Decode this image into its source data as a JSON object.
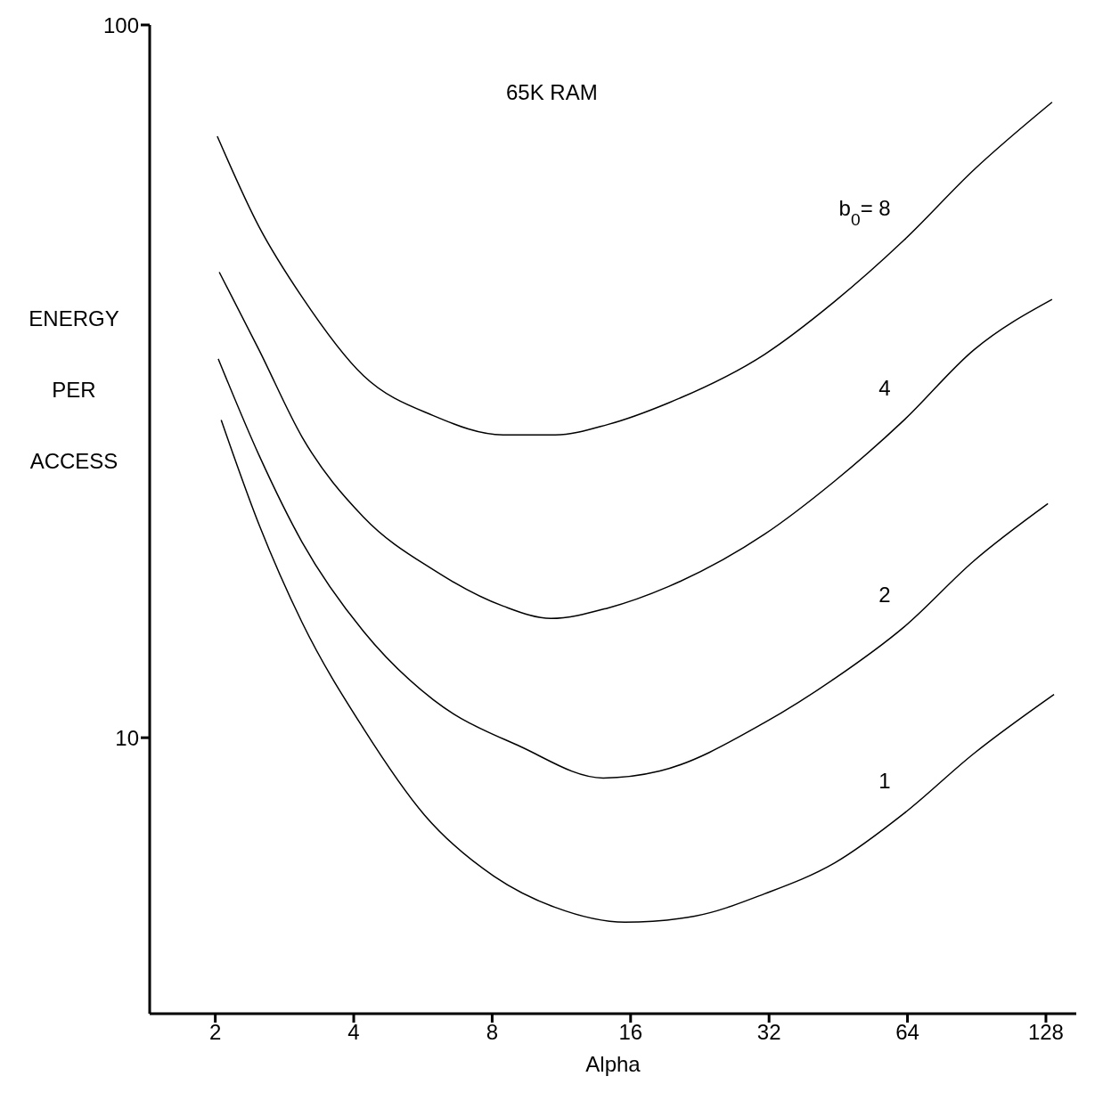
{
  "chart_data": {
    "type": "line",
    "title": "65K RAM",
    "xlabel": "Alpha",
    "ylabel": "ENERGY PER ACCESS",
    "log": "xy",
    "xlim": [
      1.44,
      149
    ],
    "xticks": [
      2,
      4,
      8,
      16,
      32,
      64,
      128
    ],
    "ylim": [
      4.1,
      100
    ],
    "yticks": [
      10,
      100
    ],
    "grid": false,
    "legend": false,
    "marker": "none",
    "line_style": "solid",
    "series": [
      {
        "name": "b$_{0}$= 8",
        "color": "#000000",
        "x": [
          2.02,
          2.49,
          3.09,
          4.2,
          5.96,
          8.45,
          10.97,
          14.26,
          19.36,
          31.3,
          44.4,
          62.9,
          89.2,
          132
        ],
        "values": [
          69.8,
          52.1,
          41.5,
          32.2,
          28.3,
          26.6,
          26.6,
          27.5,
          29.5,
          34.5,
          40.9,
          49.9,
          62.6,
          77.9
        ]
      },
      {
        "name": "4",
        "color": "#000000",
        "x": [
          2.04,
          2.49,
          3.09,
          4.2,
          5.96,
          8.45,
          10.73,
          14.26,
          19.36,
          31.3,
          44.4,
          62.9,
          89.2,
          132
        ],
        "values": [
          45.0,
          35.0,
          26.4,
          20.4,
          17.2,
          15.3,
          14.7,
          15.2,
          16.3,
          19.3,
          22.9,
          27.9,
          35.0,
          41.2
        ]
      },
      {
        "name": "2",
        "color": "#000000",
        "x": [
          2.03,
          2.49,
          3.09,
          4.2,
          5.96,
          9.21,
          13.95,
          18.53,
          31.3,
          44.4,
          62.9,
          89.2,
          129.3
        ],
        "values": [
          34.0,
          24.9,
          18.8,
          14.1,
          11.3,
          9.72,
          8.78,
          8.98,
          10.5,
          12.1,
          14.3,
          17.7,
          21.3
        ]
      },
      {
        "name": "1",
        "color": "#000000",
        "x": [
          2.06,
          2.49,
          3.09,
          4.2,
          5.7,
          8.08,
          10.97,
          15.56,
          22.06,
          31.3,
          44.4,
          62.9,
          89.2,
          133.3
        ],
        "values": [
          27.9,
          19.9,
          14.5,
          10.3,
          7.79,
          6.39,
          5.78,
          5.51,
          5.62,
          6.04,
          6.67,
          7.83,
          9.5,
          11.5
        ]
      }
    ]
  }
}
